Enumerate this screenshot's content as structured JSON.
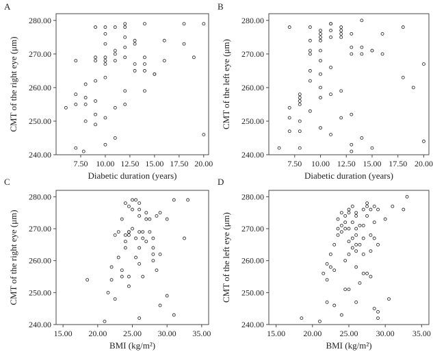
{
  "chart_data": [
    {
      "panel": "A",
      "type": "scatter",
      "xlabel": "Diabetic duration (years)",
      "ylabel": "CMT of the right eye (μm)",
      "xlim": [
        5,
        20.5
      ],
      "ylim": [
        240,
        282
      ],
      "xticks": [
        "7.50",
        "10.00",
        "12.50",
        "15.00",
        "17.50",
        "20.00"
      ],
      "yticks": [
        "240.00",
        "250.00",
        "260.00",
        "270.00",
        "280.00"
      ],
      "points": [
        [
          6,
          254
        ],
        [
          7,
          242
        ],
        [
          7,
          255
        ],
        [
          7,
          258
        ],
        [
          7,
          268
        ],
        [
          7.8,
          241
        ],
        [
          8,
          250
        ],
        [
          8,
          255
        ],
        [
          8,
          257
        ],
        [
          8,
          261
        ],
        [
          9,
          249
        ],
        [
          9,
          252
        ],
        [
          9,
          256
        ],
        [
          9,
          262
        ],
        [
          9,
          268
        ],
        [
          9,
          269
        ],
        [
          9,
          278
        ],
        [
          10,
          243
        ],
        [
          10,
          251
        ],
        [
          10,
          263
        ],
        [
          10,
          267
        ],
        [
          10,
          268
        ],
        [
          10,
          269
        ],
        [
          10,
          273
        ],
        [
          10,
          276
        ],
        [
          10,
          278
        ],
        [
          11,
          245
        ],
        [
          11,
          254
        ],
        [
          11,
          268
        ],
        [
          11,
          270
        ],
        [
          11,
          271
        ],
        [
          11,
          278
        ],
        [
          12,
          255
        ],
        [
          12,
          259
        ],
        [
          12,
          269
        ],
        [
          12,
          272
        ],
        [
          12,
          275
        ],
        [
          12,
          278
        ],
        [
          12,
          279
        ],
        [
          13,
          265
        ],
        [
          13,
          267
        ],
        [
          13,
          273
        ],
        [
          13,
          274
        ],
        [
          14,
          259
        ],
        [
          14,
          265
        ],
        [
          14,
          267
        ],
        [
          14,
          269
        ],
        [
          14,
          279
        ],
        [
          15,
          264
        ],
        [
          15,
          264
        ],
        [
          16,
          268
        ],
        [
          16,
          274
        ],
        [
          18,
          273
        ],
        [
          18,
          279
        ],
        [
          19,
          269
        ],
        [
          20,
          246
        ],
        [
          20,
          279
        ]
      ]
    },
    {
      "panel": "B",
      "type": "scatter",
      "xlabel": "Diabetic duration (years)",
      "ylabel": "CMT of the left eye (μm)",
      "xlim": [
        5,
        20.5
      ],
      "ylim": [
        240,
        282
      ],
      "xticks": [
        "7.50",
        "10.00",
        "12.50",
        "15.00",
        "17.50",
        "20.00"
      ],
      "yticks": [
        "240.00",
        "250.00",
        "260.00",
        "270.00",
        "280.00"
      ],
      "points": [
        [
          6,
          242
        ],
        [
          7,
          247
        ],
        [
          7,
          251
        ],
        [
          7,
          254
        ],
        [
          7,
          278
        ],
        [
          8,
          242
        ],
        [
          8,
          247
        ],
        [
          8,
          250
        ],
        [
          8,
          255
        ],
        [
          8,
          256
        ],
        [
          8,
          257
        ],
        [
          8,
          258
        ],
        [
          9,
          253
        ],
        [
          9,
          262
        ],
        [
          9,
          265
        ],
        [
          9,
          270
        ],
        [
          9,
          271
        ],
        [
          9,
          274
        ],
        [
          9,
          278
        ],
        [
          10,
          248
        ],
        [
          10,
          257
        ],
        [
          10,
          260
        ],
        [
          10,
          264
        ],
        [
          10,
          268
        ],
        [
          10,
          271
        ],
        [
          10,
          274
        ],
        [
          10,
          275
        ],
        [
          10,
          276
        ],
        [
          10,
          277
        ],
        [
          11,
          246
        ],
        [
          11,
          258
        ],
        [
          11,
          266
        ],
        [
          11,
          275
        ],
        [
          11,
          277
        ],
        [
          11,
          279
        ],
        [
          11,
          279
        ],
        [
          12,
          251
        ],
        [
          12,
          259
        ],
        [
          12,
          275
        ],
        [
          12,
          276
        ],
        [
          12,
          277
        ],
        [
          12,
          278
        ],
        [
          13,
          241
        ],
        [
          13,
          243
        ],
        [
          13,
          252
        ],
        [
          13,
          270
        ],
        [
          13,
          272
        ],
        [
          13,
          276
        ],
        [
          14,
          245
        ],
        [
          14,
          270
        ],
        [
          14,
          272
        ],
        [
          14,
          280
        ],
        [
          15,
          242
        ],
        [
          15,
          271
        ],
        [
          15,
          271
        ],
        [
          16,
          270
        ],
        [
          16,
          276
        ],
        [
          18,
          263
        ],
        [
          18,
          278
        ],
        [
          19,
          260
        ],
        [
          20,
          244
        ],
        [
          20,
          267
        ]
      ]
    },
    {
      "panel": "C",
      "type": "scatter",
      "xlabel": "BMI (kg/m²)",
      "ylabel": "CMT of the right eye (μm)",
      "xlim": [
        14,
        36
      ],
      "ylim": [
        240,
        282
      ],
      "xticks": [
        "15.00",
        "20.00",
        "25.00",
        "30.00",
        "35.00"
      ],
      "yticks": [
        "240.00",
        "250.00",
        "260.00",
        "270.00",
        "280.00"
      ],
      "points": [
        [
          18.5,
          254
        ],
        [
          21,
          241
        ],
        [
          21.5,
          250
        ],
        [
          22,
          254
        ],
        [
          22,
          258
        ],
        [
          22.5,
          248
        ],
        [
          22.5,
          268
        ],
        [
          23,
          261
        ],
        [
          23,
          269
        ],
        [
          23.5,
          255
        ],
        [
          23.5,
          257
        ],
        [
          23.5,
          273
        ],
        [
          24,
          264
        ],
        [
          24,
          266
        ],
        [
          24,
          268
        ],
        [
          24,
          278
        ],
        [
          24.5,
          252
        ],
        [
          24.5,
          255
        ],
        [
          24.5,
          268
        ],
        [
          24.5,
          269
        ],
        [
          24.5,
          269
        ],
        [
          24.5,
          277
        ],
        [
          25,
          270
        ],
        [
          25,
          276
        ],
        [
          25,
          279
        ],
        [
          25.5,
          261
        ],
        [
          25.5,
          267
        ],
        [
          25.5,
          279
        ],
        [
          26,
          242
        ],
        [
          26,
          259
        ],
        [
          26,
          264
        ],
        [
          26,
          269
        ],
        [
          26,
          274
        ],
        [
          26,
          276
        ],
        [
          26,
          278
        ],
        [
          26.5,
          255
        ],
        [
          26.5,
          267
        ],
        [
          26.5,
          269
        ],
        [
          27,
          266
        ],
        [
          27,
          273
        ],
        [
          27,
          275
        ],
        [
          27.5,
          269
        ],
        [
          27.5,
          273
        ],
        [
          28,
          260
        ],
        [
          28,
          262
        ],
        [
          28,
          264
        ],
        [
          28,
          267
        ],
        [
          28.5,
          257
        ],
        [
          28.5,
          274
        ],
        [
          29,
          246
        ],
        [
          29,
          262
        ],
        [
          29,
          275
        ],
        [
          30,
          249
        ],
        [
          30,
          273
        ],
        [
          31,
          243
        ],
        [
          31,
          279
        ],
        [
          32.5,
          267
        ],
        [
          33,
          279
        ]
      ]
    },
    {
      "panel": "D",
      "type": "scatter",
      "xlabel": "BMI (kg/m²)",
      "ylabel": "CMT of the left eye (μm)",
      "xlim": [
        14,
        36
      ],
      "ylim": [
        240,
        282
      ],
      "xticks": [
        "15.00",
        "20.00",
        "25.00",
        "30.00",
        "35.00"
      ],
      "yticks": [
        "240.00",
        "250.00",
        "260.00",
        "270.00",
        "280.00"
      ],
      "points": [
        [
          18.5,
          242
        ],
        [
          21,
          241
        ],
        [
          21.5,
          256
        ],
        [
          22,
          247
        ],
        [
          22,
          254
        ],
        [
          22,
          259
        ],
        [
          22.5,
          258
        ],
        [
          22.5,
          262
        ],
        [
          23,
          246
        ],
        [
          23,
          257
        ],
        [
          23,
          265
        ],
        [
          23.5,
          268
        ],
        [
          23.5,
          270
        ],
        [
          23.5,
          273
        ],
        [
          24,
          243
        ],
        [
          24,
          269
        ],
        [
          24,
          271
        ],
        [
          24,
          275
        ],
        [
          24.5,
          251
        ],
        [
          24.5,
          260
        ],
        [
          24.5,
          270
        ],
        [
          24.5,
          272
        ],
        [
          24.5,
          274
        ],
        [
          25,
          251
        ],
        [
          25,
          262
        ],
        [
          25,
          266
        ],
        [
          25,
          270
        ],
        [
          25,
          275
        ],
        [
          25,
          276
        ],
        [
          25.5,
          264
        ],
        [
          25.5,
          267
        ],
        [
          25.5,
          272
        ],
        [
          25.5,
          277
        ],
        [
          26,
          247
        ],
        [
          26,
          258
        ],
        [
          26,
          263
        ],
        [
          26,
          265
        ],
        [
          26,
          268
        ],
        [
          26,
          270
        ],
        [
          26,
          274
        ],
        [
          26,
          275
        ],
        [
          26.5,
          253
        ],
        [
          26.5,
          265
        ],
        [
          26.5,
          271
        ],
        [
          27,
          256
        ],
        [
          27,
          262
        ],
        [
          27,
          267
        ],
        [
          27,
          271
        ],
        [
          27,
          276
        ],
        [
          27.5,
          256
        ],
        [
          27.5,
          274
        ],
        [
          27.5,
          277
        ],
        [
          27.5,
          278
        ],
        [
          28,
          255
        ],
        [
          28,
          263
        ],
        [
          28,
          268
        ],
        [
          28,
          276
        ],
        [
          28.5,
          245
        ],
        [
          28.5,
          267
        ],
        [
          28.5,
          272
        ],
        [
          28.5,
          277
        ],
        [
          29,
          242
        ],
        [
          29,
          244
        ],
        [
          29,
          265
        ],
        [
          29,
          276
        ],
        [
          30,
          273
        ],
        [
          30.5,
          248
        ],
        [
          31,
          277
        ],
        [
          32.5,
          276
        ],
        [
          33,
          280
        ]
      ]
    }
  ]
}
